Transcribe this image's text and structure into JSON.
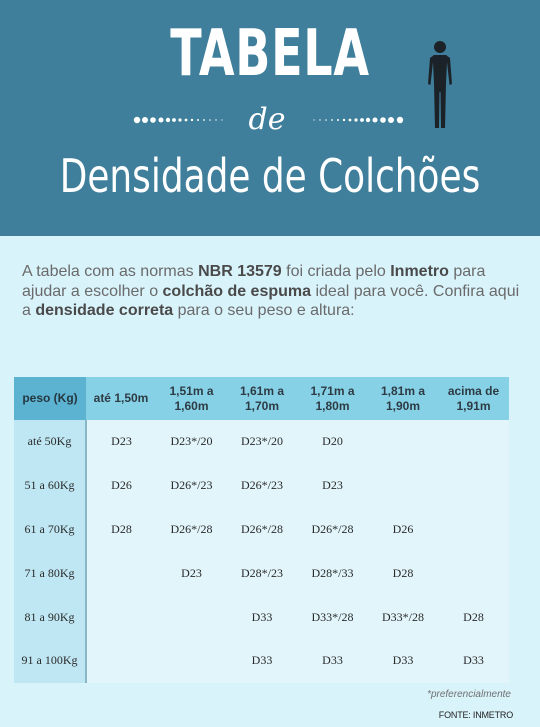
{
  "header": {
    "title_main": "TABELA",
    "title_script": "de",
    "title_sub": "Densidade de Colchões",
    "icon": "person-silhouette-icon",
    "background_color": "#3f7f9b"
  },
  "intro": {
    "part1": "A tabela com as normas ",
    "bold1": "NBR 13579",
    "part2": " foi criada pelo ",
    "bold2": "Inmetro",
    "part3": " para ajudar a escolher o ",
    "bold3": "colchão de espuma",
    "part4": " ideal para você. Confira aqui a ",
    "bold4": "densidade correta",
    "part5": " para o seu peso e altura:"
  },
  "table": {
    "corner_label": "peso (Kg)",
    "columns": [
      {
        "line1": "até 1,50m",
        "line2": ""
      },
      {
        "line1": "1,51m a",
        "line2": "1,60m"
      },
      {
        "line1": "1,61m a",
        "line2": "1,70m"
      },
      {
        "line1": "1,71m a",
        "line2": "1,80m"
      },
      {
        "line1": "1,81m a",
        "line2": "1,90m"
      },
      {
        "line1": "acima de",
        "line2": "1,91m"
      }
    ],
    "rows": [
      {
        "label": "até 50Kg",
        "cells": [
          "D23",
          "D23*/20",
          "D23*/20",
          "D20",
          "",
          ""
        ]
      },
      {
        "label": "51 a 60Kg",
        "cells": [
          "D26",
          "D26*/23",
          "D26*/23",
          "D23",
          "",
          ""
        ]
      },
      {
        "label": "61 a 70Kg",
        "cells": [
          "D28",
          "D26*/28",
          "D26*/28",
          "D26*/28",
          "D26",
          ""
        ]
      },
      {
        "label": "71 a 80Kg",
        "cells": [
          "",
          "D23",
          "D28*/23",
          "D28*/33",
          "D28",
          ""
        ]
      },
      {
        "label": "81 a 90Kg",
        "cells": [
          "",
          "",
          "D33",
          "D33*/28",
          "D33*/28",
          "D28"
        ]
      },
      {
        "label": "91 a 100Kg",
        "cells": [
          "",
          "",
          "D33",
          "D33",
          "D33",
          "D33"
        ]
      }
    ]
  },
  "footnote": "*preferencialmente",
  "source": "FONTE: INMETRO"
}
